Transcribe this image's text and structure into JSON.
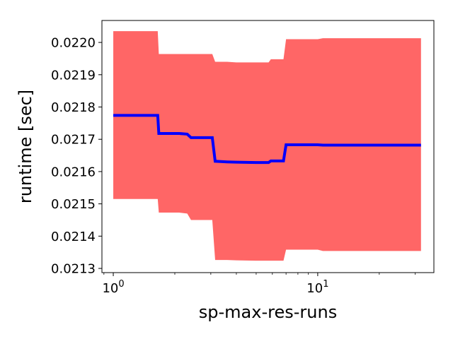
{
  "chart_data": {
    "type": "line",
    "title": "",
    "xlabel": "sp-max-res-runs",
    "ylabel": "runtime [sec]",
    "xscale": "log",
    "xlim": [
      0.88,
      37
    ],
    "ylim": [
      0.021287,
      0.022068
    ],
    "grid": false,
    "legend": "none",
    "colors": {
      "band": "#ff6666",
      "line": "#0000ff"
    },
    "x_ticks": [
      {
        "value": 1,
        "base": "10",
        "exp": "0"
      },
      {
        "value": 10,
        "base": "10",
        "exp": "1"
      }
    ],
    "y_ticks": [
      {
        "value": 0.0213,
        "label": "0.0213"
      },
      {
        "value": 0.0214,
        "label": "0.0214"
      },
      {
        "value": 0.0215,
        "label": "0.0215"
      },
      {
        "value": 0.0216,
        "label": "0.0216"
      },
      {
        "value": 0.0217,
        "label": "0.0217"
      },
      {
        "value": 0.0218,
        "label": "0.0218"
      },
      {
        "value": 0.0219,
        "label": "0.0219"
      },
      {
        "value": 0.022,
        "label": "0.0220"
      }
    ],
    "x": [
      1.0,
      1.65,
      1.67,
      2.1,
      2.3,
      2.4,
      3.05,
      3.15,
      3.6,
      4.0,
      5.0,
      5.75,
      5.9,
      6.8,
      7.0,
      10.0,
      10.6,
      32.0
    ],
    "mean": [
      0.021774,
      0.021774,
      0.021718,
      0.021718,
      0.021716,
      0.021705,
      0.021705,
      0.021632,
      0.02163,
      0.021629,
      0.021628,
      0.021628,
      0.021633,
      0.021633,
      0.021683,
      0.021683,
      0.021682,
      0.021682
    ],
    "upper": [
      0.022035,
      0.022035,
      0.021964,
      0.021964,
      0.021964,
      0.021964,
      0.021964,
      0.02194,
      0.02194,
      0.021938,
      0.021938,
      0.021938,
      0.021948,
      0.021948,
      0.02201,
      0.02201,
      0.022013,
      0.022013
    ],
    "lower": [
      0.021515,
      0.021515,
      0.021473,
      0.021473,
      0.02147,
      0.02145,
      0.02145,
      0.021326,
      0.021326,
      0.021325,
      0.021324,
      0.021324,
      0.021324,
      0.021324,
      0.021358,
      0.021358,
      0.021354,
      0.021354
    ]
  }
}
